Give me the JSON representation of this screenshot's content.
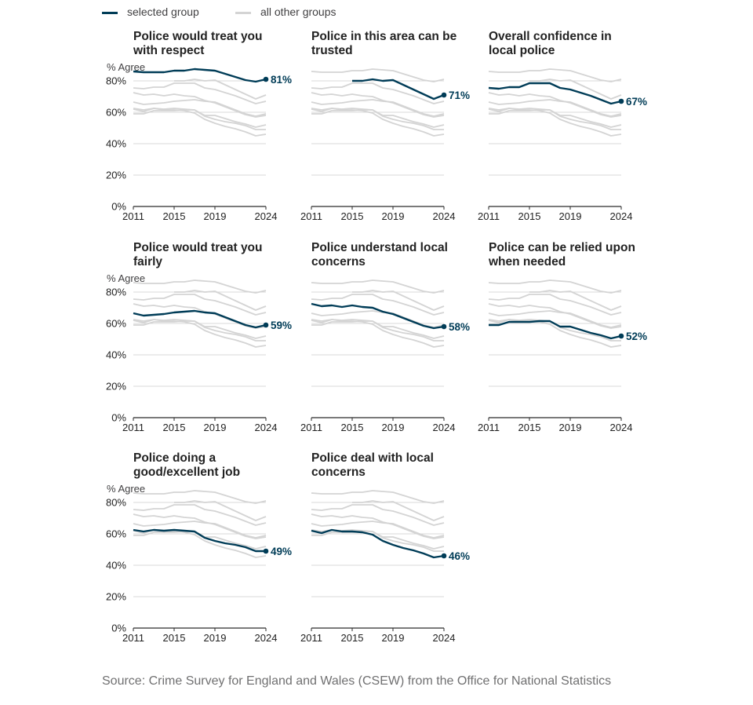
{
  "legend": {
    "selected": "selected group",
    "others": "all other groups"
  },
  "colors": {
    "selected": "#003c57",
    "others": "#d4d4d4",
    "grid": "#d9d9d9",
    "axis": "#2b2b2b",
    "text": "#222222"
  },
  "source": "Source: Crime Survey for England and Wales (CSEW) from the Office for National Statistics",
  "chart_data": {
    "type": "line",
    "small_multiples": true,
    "ylabel": "% Agree",
    "ylim": [
      0,
      90
    ],
    "yticks": [
      0,
      20,
      40,
      60,
      80
    ],
    "ytick_labels": [
      "0%",
      "20%",
      "40%",
      "60%",
      "80%"
    ],
    "xlim": [
      2011,
      2024
    ],
    "xticks": [
      2011,
      2015,
      2019,
      2024
    ],
    "x": [
      2011,
      2012,
      2013,
      2014,
      2015,
      2016,
      2017,
      2018,
      2019,
      2020,
      2021,
      2022,
      2023,
      2024
    ],
    "grid": true,
    "legend_position": "top-left",
    "charts": [
      {
        "title": "Police would treat you with respect",
        "end_label": "81%",
        "values": [
          86,
          85.5,
          85.5,
          85.5,
          86.5,
          86.5,
          87.5,
          87,
          86.5,
          84.5,
          82.5,
          80.5,
          79.5,
          81
        ]
      },
      {
        "title": "Police in this area can be trusted",
        "end_label": "71%",
        "values": [
          null,
          null,
          null,
          null,
          80,
          80,
          81,
          80,
          80.5,
          77.5,
          74.5,
          71.5,
          68.5,
          71
        ]
      },
      {
        "title": "Overall confidence in local police",
        "end_label": "67%",
        "values": [
          75.5,
          75,
          76,
          76,
          78.5,
          78.5,
          78.5,
          75.5,
          74.5,
          72.5,
          70.5,
          68,
          65.5,
          67
        ]
      },
      {
        "title": "Police would treat you fairly",
        "end_label": "59%",
        "values": [
          66.5,
          65,
          65.5,
          66,
          67,
          67.5,
          68,
          67,
          66.5,
          64,
          61.5,
          59,
          57.5,
          59
        ]
      },
      {
        "title": "Police understand local concerns",
        "end_label": "58%",
        "values": [
          72.5,
          71,
          71.5,
          70.5,
          71.5,
          70.5,
          70,
          67.5,
          66,
          63.5,
          61,
          58.5,
          57,
          58
        ]
      },
      {
        "title": "Police can be relied upon when needed",
        "end_label": "52%",
        "values": [
          59,
          59,
          61,
          61,
          61,
          61.5,
          61.5,
          58,
          58,
          56,
          54,
          52.5,
          50.5,
          52
        ]
      },
      {
        "title": "Police doing a good/excellent job",
        "end_label": "49%",
        "values": [
          62.5,
          61.5,
          62.5,
          62,
          62.5,
          62,
          61.5,
          57.5,
          55.5,
          54,
          53,
          51.5,
          49,
          49
        ]
      },
      {
        "title": "Police deal with local concerns",
        "end_label": "46%",
        "values": [
          62,
          60.5,
          62.5,
          61.5,
          61.5,
          61,
          59.5,
          55.5,
          53,
          51,
          49.5,
          47.5,
          45,
          46
        ]
      }
    ]
  }
}
